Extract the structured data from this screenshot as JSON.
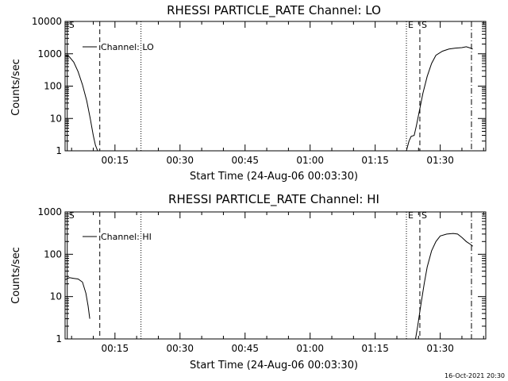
{
  "chart_data": [
    {
      "type": "line",
      "title": "RHESSI PARTICLE_RATE Channel: LO",
      "xlabel": "Start Time (24-Aug-06 00:03:30)",
      "ylabel": "Counts/sec",
      "yscale": "log",
      "ylim": [
        1,
        10000
      ],
      "xlim_minutes": [
        3.5,
        100.5
      ],
      "x_ticks": [
        {
          "t": 15,
          "label": "00:15"
        },
        {
          "t": 30,
          "label": "00:30"
        },
        {
          "t": 45,
          "label": "00:45"
        },
        {
          "t": 60,
          "label": "01:00"
        },
        {
          "t": 75,
          "label": "01:15"
        },
        {
          "t": 90,
          "label": "01:30"
        }
      ],
      "y_ticks": [
        {
          "v": 1,
          "label": "1"
        },
        {
          "v": 10,
          "label": "10"
        },
        {
          "v": 100,
          "label": "100"
        },
        {
          "v": 1000,
          "label": "1000"
        },
        {
          "v": 10000,
          "label": "10000"
        }
      ],
      "legend": {
        "placement": "top-left",
        "label": "Channel: LO"
      },
      "markers": [
        {
          "t": 4.0,
          "style": "solid",
          "label": "S"
        },
        {
          "t": 11.5,
          "style": "dashed",
          "label": ""
        },
        {
          "t": 21.0,
          "style": "dotted",
          "label": ""
        },
        {
          "t": 82.2,
          "style": "dotted",
          "label": "E"
        },
        {
          "t": 85.3,
          "style": "dashed",
          "label": "S"
        },
        {
          "t": 97.2,
          "style": "dashdot",
          "label": ""
        }
      ],
      "series": [
        {
          "name": "Channel: LO",
          "segments": [
            [
              [
                3.5,
                900
              ],
              [
                4.5,
                800
              ],
              [
                5.5,
                550
              ],
              [
                6.5,
                280
              ],
              [
                7.5,
                110
              ],
              [
                8.5,
                35
              ],
              [
                9.3,
                10
              ],
              [
                10.0,
                3
              ],
              [
                10.5,
                1.5
              ],
              [
                11.0,
                1
              ]
            ],
            [
              [
                82.2,
                1
              ],
              [
                82.8,
                2
              ],
              [
                83.3,
                2.8
              ],
              [
                84.0,
                3
              ],
              [
                84.5,
                6
              ],
              [
                85.3,
                20
              ],
              [
                86.0,
                60
              ],
              [
                87.0,
                200
              ],
              [
                88.0,
                500
              ],
              [
                89.0,
                900
              ],
              [
                90.5,
                1200
              ],
              [
                92.0,
                1400
              ],
              [
                93.5,
                1500
              ],
              [
                95.0,
                1550
              ],
              [
                96.0,
                1650
              ],
              [
                97.0,
                1500
              ],
              [
                97.5,
                1400
              ]
            ]
          ]
        }
      ]
    },
    {
      "type": "line",
      "title": "RHESSI PARTICLE_RATE Channel: HI",
      "xlabel": "Start Time (24-Aug-06 00:03:30)",
      "ylabel": "Counts/sec",
      "yscale": "log",
      "ylim": [
        1,
        1000
      ],
      "xlim_minutes": [
        3.5,
        100.5
      ],
      "x_ticks": [
        {
          "t": 15,
          "label": "00:15"
        },
        {
          "t": 30,
          "label": "00:30"
        },
        {
          "t": 45,
          "label": "00:45"
        },
        {
          "t": 60,
          "label": "01:00"
        },
        {
          "t": 75,
          "label": "01:15"
        },
        {
          "t": 90,
          "label": "01:30"
        }
      ],
      "y_ticks": [
        {
          "v": 1,
          "label": "1"
        },
        {
          "v": 10,
          "label": "10"
        },
        {
          "v": 100,
          "label": "100"
        },
        {
          "v": 1000,
          "label": "1000"
        }
      ],
      "legend": {
        "placement": "top-left",
        "label": "Channel: HI"
      },
      "markers": [
        {
          "t": 4.0,
          "style": "solid",
          "label": "S"
        },
        {
          "t": 11.5,
          "style": "dashed",
          "label": ""
        },
        {
          "t": 21.0,
          "style": "dotted",
          "label": ""
        },
        {
          "t": 82.2,
          "style": "dotted",
          "label": "E"
        },
        {
          "t": 85.3,
          "style": "dashed",
          "label": "S"
        },
        {
          "t": 97.2,
          "style": "dashdot",
          "label": ""
        }
      ],
      "series": [
        {
          "name": "Channel: HI",
          "segments": [
            [
              [
                3.5,
                25
              ],
              [
                4.5,
                28
              ],
              [
                5.5,
                27
              ],
              [
                6.5,
                26
              ],
              [
                7.5,
                22
              ],
              [
                8.3,
                12
              ],
              [
                8.8,
                6
              ],
              [
                9.2,
                3
              ]
            ],
            [
              [
                84.3,
                1
              ],
              [
                84.8,
                2
              ],
              [
                85.5,
                6
              ],
              [
                86.3,
                20
              ],
              [
                87.0,
                50
              ],
              [
                88.0,
                120
              ],
              [
                89.0,
                200
              ],
              [
                90.0,
                270
              ],
              [
                91.5,
                300
              ],
              [
                93.0,
                310
              ],
              [
                94.0,
                300
              ],
              [
                95.0,
                250
              ],
              [
                96.0,
                200
              ],
              [
                97.0,
                170
              ],
              [
                97.5,
                155
              ]
            ]
          ]
        }
      ]
    }
  ],
  "timestamp": "16-Oct-2021 20:30"
}
